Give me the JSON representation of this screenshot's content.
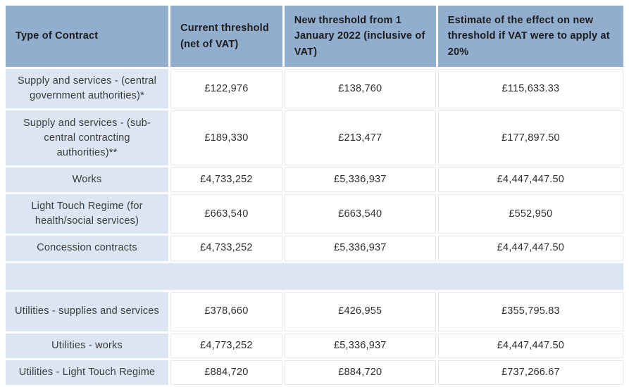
{
  "colors": {
    "header_bg": "#92aecf",
    "label_bg": "#dce6f2",
    "separator_bg": "#dce6f2",
    "value_bg": "#ffffff",
    "grid_line": "#e9e9e9",
    "header_text": "#1c1c1c",
    "body_text": "#3a3a3a"
  },
  "table": {
    "headers": {
      "contract": "Type of Contract",
      "current": "Current threshold (net of VAT)",
      "new_2022": "New threshold from 1 January 2022 (inclusive of VAT)",
      "vat_estimate": "Estimate of the effect on new threshold if VAT were to apply at 20%"
    },
    "rows": [
      {
        "contract": "Supply and services - (central government authorities)*",
        "current": "£122,976",
        "new_2022": "£138,760",
        "vat_estimate": "£115,633.33"
      },
      {
        "contract": "Supply and services - (sub-central contracting authorities)**",
        "current": "£189,330",
        "new_2022": "£213,477",
        "vat_estimate": "£177,897.50"
      },
      {
        "contract": "Works",
        "current": "£4,733,252",
        "new_2022": "£5,336,937",
        "vat_estimate": "£4,447,447.50"
      },
      {
        "contract": "Light Touch Regime (for health/social services)",
        "current": "£663,540",
        "new_2022": "£663,540",
        "vat_estimate": "£552,950"
      },
      {
        "contract": "Concession contracts",
        "current": "£4,733,252",
        "new_2022": "£5,336,937",
        "vat_estimate": "£4,447,447.50"
      },
      {
        "contract": "Utilities - supplies and services",
        "current": "£378,660",
        "new_2022": "£426,955",
        "vat_estimate": "£355,795.83"
      },
      {
        "contract": "Utilities - works",
        "current": "£4,773,252",
        "new_2022": "£5,336,937",
        "vat_estimate": "£4,447,447.50"
      },
      {
        "contract": "Utilities - Light Touch Regime",
        "current": "£884,720",
        "new_2022": "£884,720",
        "vat_estimate": "£737,266.67"
      }
    ]
  }
}
